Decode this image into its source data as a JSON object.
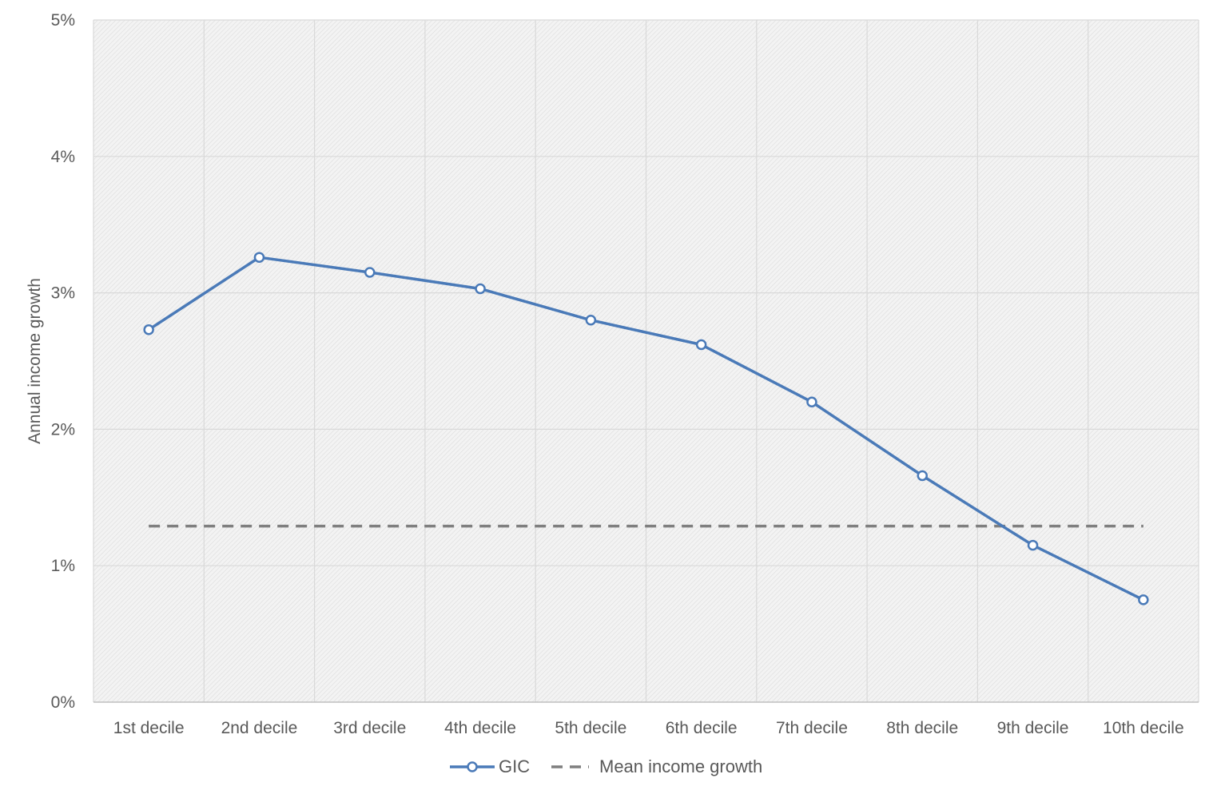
{
  "chart_data": {
    "type": "line",
    "categories": [
      "1st decile",
      "2nd decile",
      "3rd decile",
      "4th decile",
      "5th decile",
      "6th decile",
      "7th decile",
      "8th decile",
      "9th decile",
      "10th decile"
    ],
    "series": [
      {
        "name": "GIC",
        "values": [
          0.0273,
          0.0326,
          0.0315,
          0.0303,
          0.028,
          0.0262,
          0.022,
          0.0166,
          0.0115,
          0.0075
        ],
        "color": "#4a7ab8",
        "marker": "open-circle"
      },
      {
        "name": "Mean income growth",
        "values": [
          0.0129,
          0.0129,
          0.0129,
          0.0129,
          0.0129,
          0.0129,
          0.0129,
          0.0129,
          0.0129,
          0.0129
        ],
        "color": "#7f7f7f",
        "style": "dashed"
      }
    ],
    "ylabel": "Annual income growth",
    "xlabel": "",
    "ylim": [
      0,
      0.05
    ],
    "yticks": [
      "0%",
      "1%",
      "2%",
      "3%",
      "4%",
      "5%"
    ],
    "grid": true,
    "legend_position": "bottom"
  }
}
